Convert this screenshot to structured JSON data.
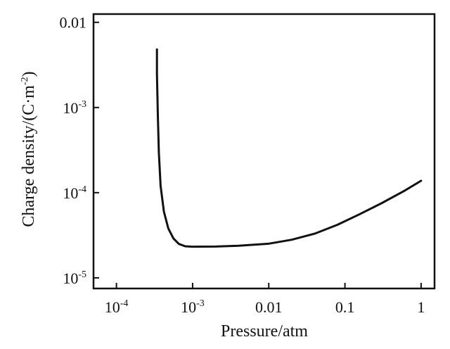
{
  "chart_data": {
    "type": "line",
    "title": "",
    "xlabel": "Pressure/atm",
    "ylabel": {
      "main": "Charge density/(C·m",
      "sup": "-2",
      "close": ")"
    },
    "x_scale": "log",
    "y_scale": "log",
    "xlim": [
      5e-05,
      1.5
    ],
    "ylim": [
      7.5e-06,
      0.0125
    ],
    "x_ticks": [
      {
        "value": 0.0001,
        "base": "10",
        "exp": "-4",
        "plain": ""
      },
      {
        "value": 0.001,
        "base": "10",
        "exp": "-3",
        "plain": ""
      },
      {
        "value": 0.01,
        "base": "",
        "exp": "",
        "plain": "0.01"
      },
      {
        "value": 0.1,
        "base": "",
        "exp": "",
        "plain": "0.1"
      },
      {
        "value": 1,
        "base": "",
        "exp": "",
        "plain": "1"
      }
    ],
    "y_ticks": [
      {
        "value": 1e-05,
        "base": "10",
        "exp": "-5",
        "plain": ""
      },
      {
        "value": 0.0001,
        "base": "10",
        "exp": "-4",
        "plain": ""
      },
      {
        "value": 0.001,
        "base": "10",
        "exp": "-3",
        "plain": ""
      },
      {
        "value": 0.01,
        "base": "",
        "exp": "",
        "plain": "0.01"
      }
    ],
    "grid": false,
    "legend": "none",
    "series": [
      {
        "color": "#111111",
        "points": [
          [
            0.00034,
            0.0048
          ],
          [
            0.00034,
            0.0025
          ],
          [
            0.00035,
            0.0008
          ],
          [
            0.00036,
            0.0003
          ],
          [
            0.00038,
            0.00012
          ],
          [
            0.00042,
            6e-05
          ],
          [
            0.00048,
            3.8e-05
          ],
          [
            0.00056,
            2.9e-05
          ],
          [
            0.00066,
            2.5e-05
          ],
          [
            0.0008,
            2.35e-05
          ],
          [
            0.001,
            2.32e-05
          ],
          [
            0.002,
            2.33e-05
          ],
          [
            0.004,
            2.38e-05
          ],
          [
            0.01,
            2.52e-05
          ],
          [
            0.02,
            2.8e-05
          ],
          [
            0.04,
            3.3e-05
          ],
          [
            0.08,
            4.2e-05
          ],
          [
            0.15,
            5.5e-05
          ],
          [
            0.3,
            7.5e-05
          ],
          [
            0.6,
            0.000105
          ],
          [
            1,
            0.000138
          ]
        ]
      }
    ]
  }
}
